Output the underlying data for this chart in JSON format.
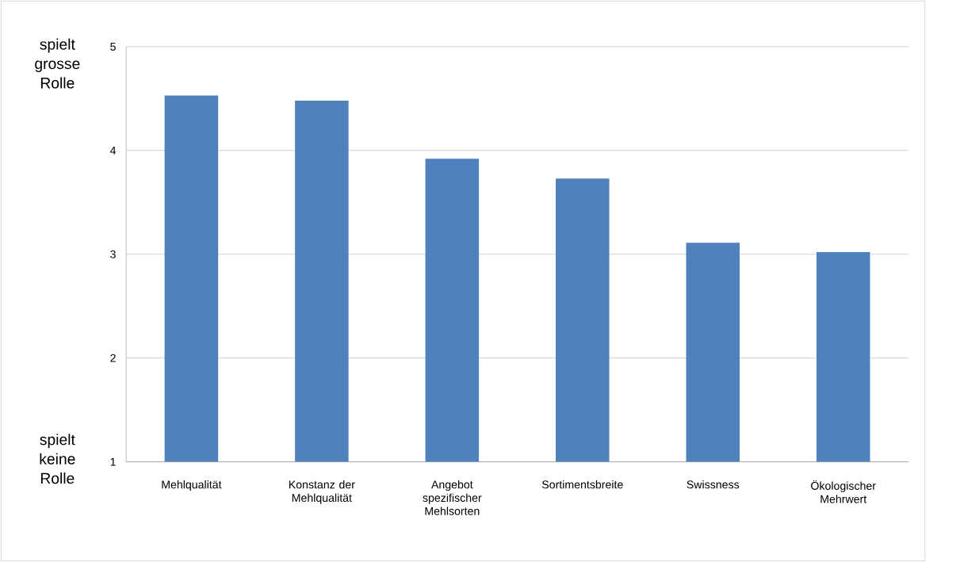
{
  "chart_data": {
    "type": "bar",
    "categories": [
      "Mehlqualität",
      "Konstanz der Mehlqualität",
      "Angebot spezifischer Mehlsorten",
      "Sortimentsbreite",
      "Swissness",
      "Ökologischer Mehrwert"
    ],
    "values": [
      4.53,
      4.48,
      3.92,
      3.73,
      3.11,
      3.02
    ],
    "color": "#4f81bd",
    "ylim": [
      1,
      5
    ],
    "yticks": [
      1,
      2,
      3,
      4,
      5
    ],
    "grid": "y",
    "annotations": [
      "spielt grosse Rolle",
      "spielt keine Rolle"
    ]
  }
}
